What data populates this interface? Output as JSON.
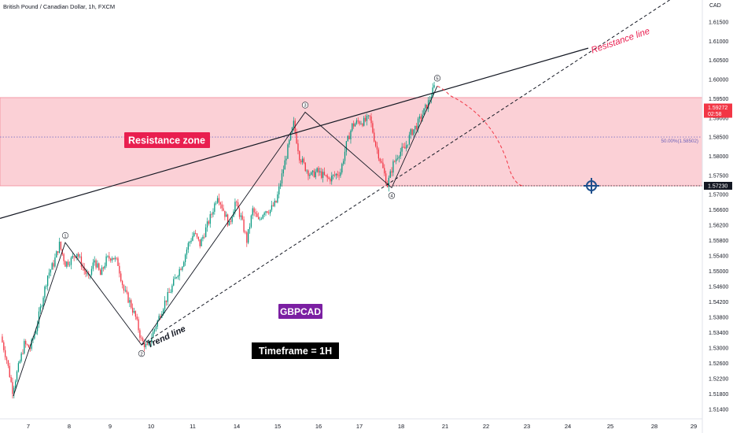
{
  "header": {
    "symbol_title": "British Pound / Canadian Dollar, 1h, FXCM"
  },
  "axis": {
    "currency": "CAD"
  },
  "colors": {
    "bull": "#089981",
    "bear": "#f23645",
    "zone_fill": "#fbd0d6",
    "zone_border": "#f28a98",
    "price_tag": "#f23645",
    "level_tag": "#131722",
    "target_icon": "#1e4f8c",
    "gbpcad_box": "#7b1fa2",
    "zone_label_box": "#e91e4f",
    "timeframe_box": "#000000"
  },
  "annotations": {
    "resistance_zone": "Resistance zone",
    "resistance_line": "Resistance line",
    "trend_line": "Trend line",
    "symbol_box": "GBPCAD",
    "timeframe": "Timeframe = 1H",
    "fib_label": "50.00%(1.58502)",
    "price_tag": "1.59272",
    "price_countdown": "02:58",
    "level_tag": "1.57230",
    "waves": [
      "1",
      "2",
      "3",
      "4",
      "5"
    ]
  },
  "chart_data": {
    "type": "candlestick",
    "title": "British Pound / Canadian Dollar, 1h, FXCM",
    "x_ticks": [
      "7",
      "8",
      "9",
      "10",
      "11",
      "14",
      "15",
      "16",
      "17",
      "18",
      "21",
      "22",
      "23",
      "24",
      "25",
      "28",
      "29"
    ],
    "y_ticks": [
      "1.61500",
      "1.61000",
      "1.60500",
      "1.60000",
      "1.59500",
      "1.59000",
      "1.58500",
      "1.58000",
      "1.57500",
      "1.57000",
      "1.56600",
      "1.56200",
      "1.55800",
      "1.55400",
      "1.55000",
      "1.54600",
      "1.54200",
      "1.53800",
      "1.53400",
      "1.53000",
      "1.52600",
      "1.52200",
      "1.51800",
      "1.51400"
    ],
    "ylim": [
      1.5125,
      1.6205
    ],
    "resistance_zone": [
      1.5723,
      1.5953
    ],
    "fib_50": 1.58502,
    "current_price": 1.59272,
    "target_level": 1.5723,
    "price_path": [
      1.533,
      1.527,
      1.519,
      1.525,
      1.531,
      1.53,
      1.535,
      1.542,
      1.549,
      1.552,
      1.557,
      1.552,
      1.553,
      1.555,
      1.551,
      1.548,
      1.553,
      1.549,
      1.553,
      1.554,
      1.552,
      1.545,
      1.542,
      1.538,
      1.532,
      1.53,
      1.534,
      1.538,
      1.542,
      1.545,
      1.549,
      1.552,
      1.557,
      1.56,
      1.557,
      1.561,
      1.565,
      1.57,
      1.566,
      1.562,
      1.568,
      1.564,
      1.558,
      1.566,
      1.563,
      1.566,
      1.566,
      1.568,
      1.575,
      1.582,
      1.5885,
      1.58,
      1.577,
      1.575,
      1.576,
      1.575,
      1.574,
      1.575,
      1.576,
      1.583,
      1.588,
      1.589,
      1.589,
      1.59,
      1.583,
      1.578,
      1.5725,
      1.578,
      1.581,
      1.582,
      1.586,
      1.588,
      1.591,
      1.594,
      1.598
    ],
    "waves": [
      {
        "label": "1",
        "price": 1.5575
      },
      {
        "label": "2",
        "price": 1.5308
      },
      {
        "label": "3",
        "price": 1.5915
      },
      {
        "label": "4",
        "price": 1.5718
      },
      {
        "label": "5",
        "price": 1.5983
      }
    ],
    "resistance_line": {
      "points": [
        [
          "7",
          1.5638
        ],
        [
          "24",
          1.6082
        ]
      ]
    },
    "trend_line": {
      "points": [
        [
          "10",
          1.5308
        ],
        [
          "18",
          1.5718
        ],
        [
          "29",
          1.6235
        ]
      ]
    },
    "projection": {
      "from": 1.5983,
      "to": 1.5723,
      "style": "dashed",
      "color": "#f23645"
    }
  }
}
